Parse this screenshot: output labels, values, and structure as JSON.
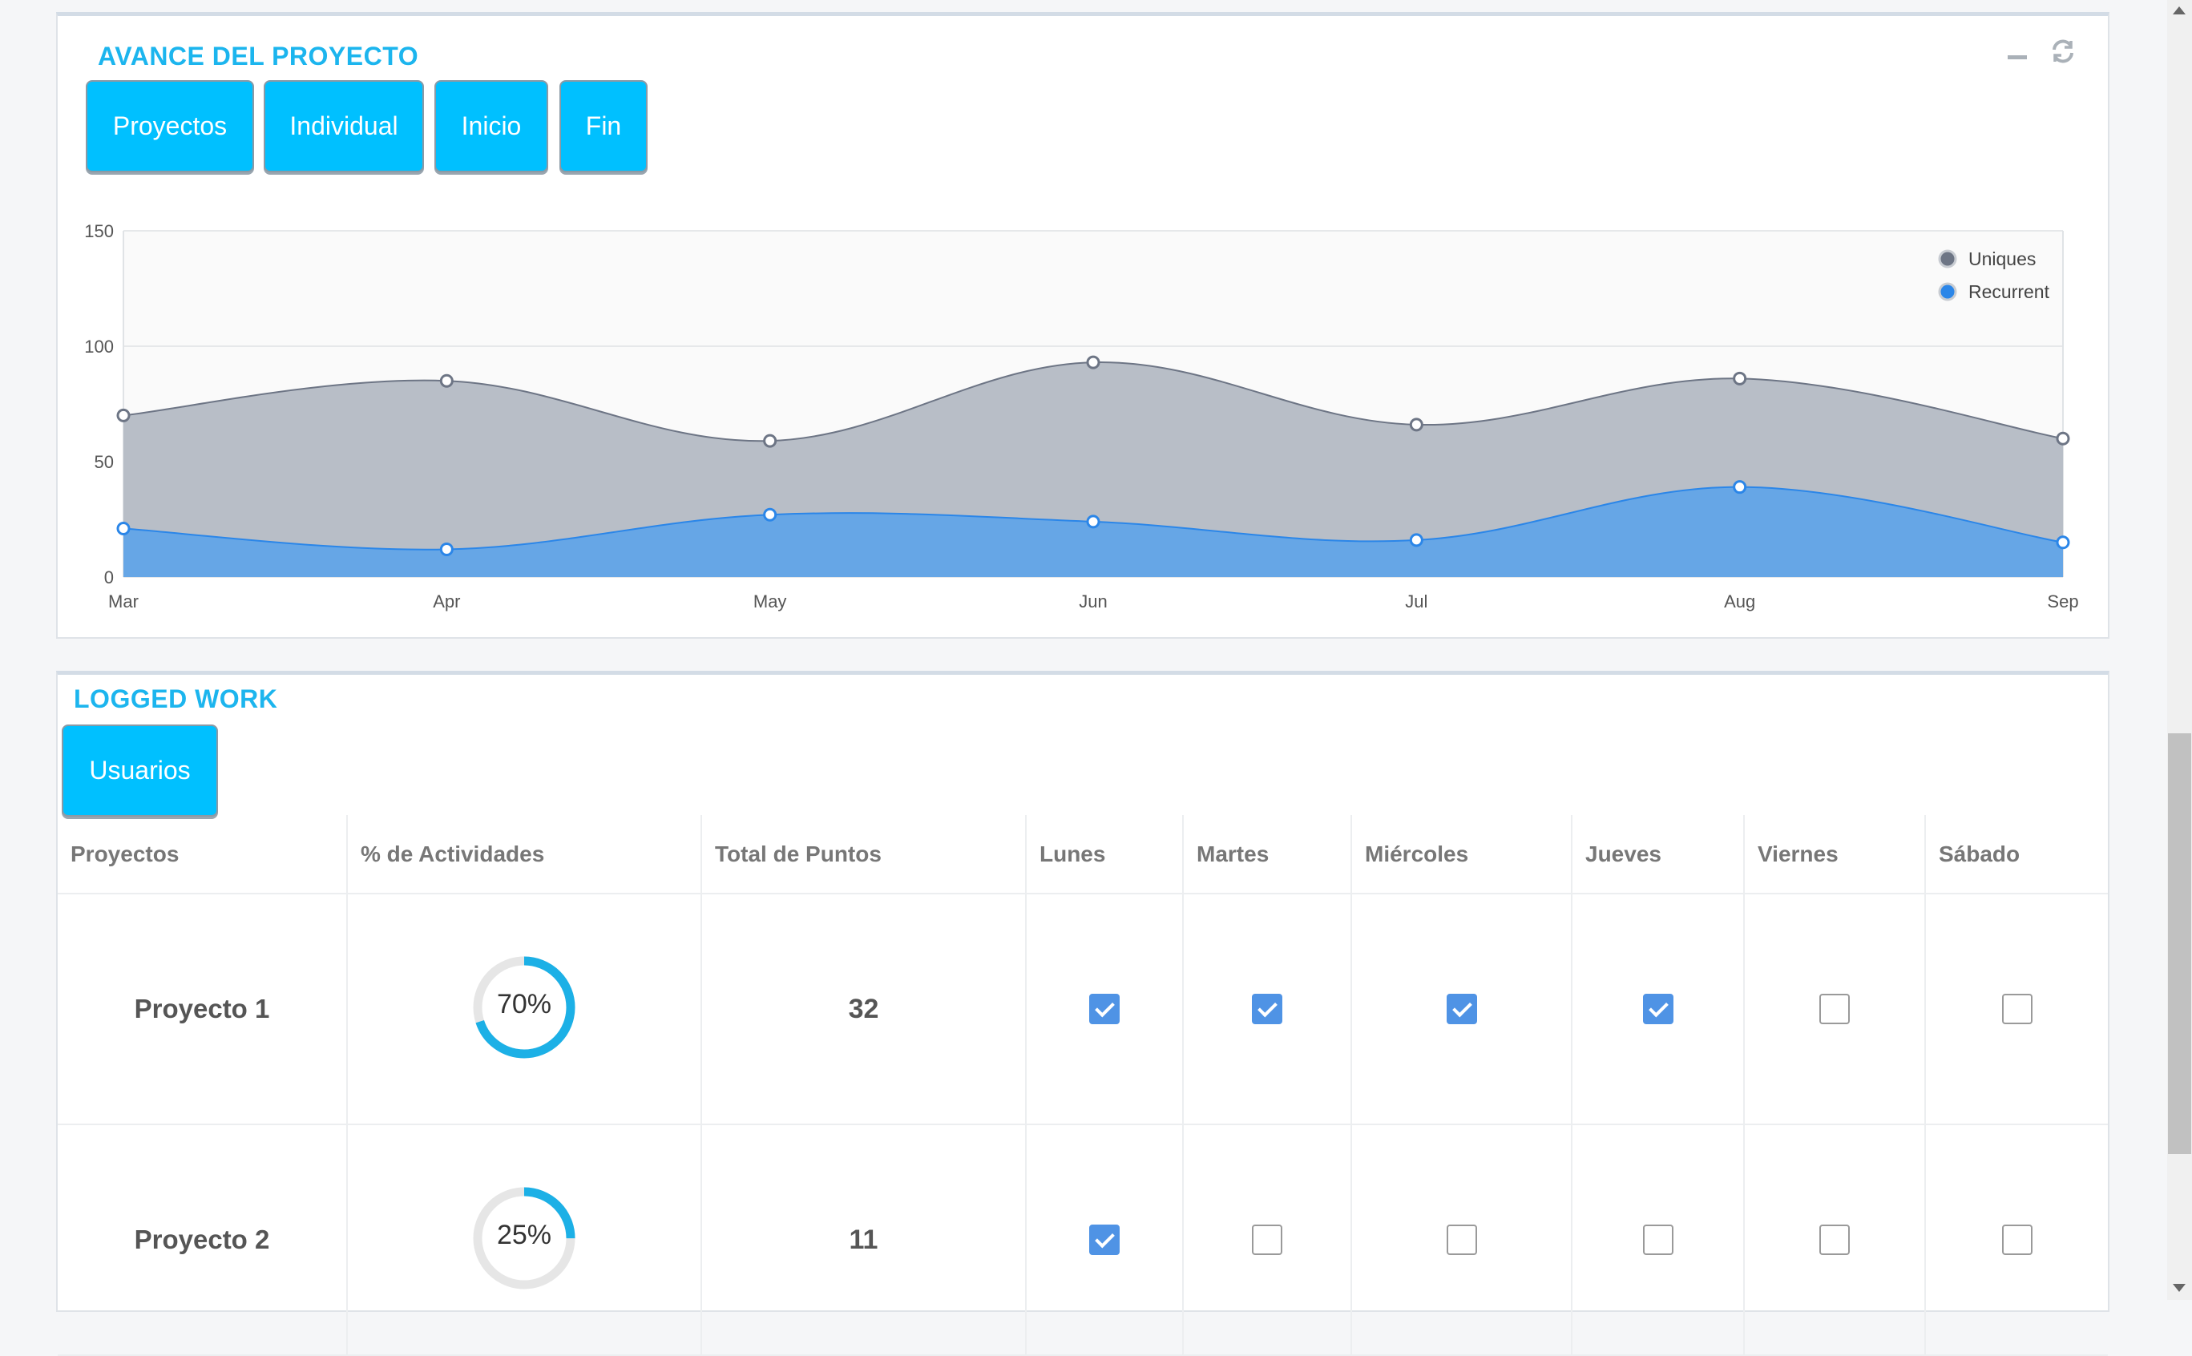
{
  "panel1": {
    "title": "AVANCE DEL PROYECTO",
    "buttons": [
      "Proyectos",
      "Individual",
      "Inicio",
      "Fin"
    ],
    "tools": [
      "minimize-icon",
      "refresh-icon"
    ]
  },
  "chart_data": {
    "type": "area",
    "categories": [
      "Mar",
      "Apr",
      "May",
      "Jun",
      "Jul",
      "Aug",
      "Sep"
    ],
    "series": [
      {
        "name": "Uniques",
        "values": [
          70,
          85,
          59,
          93,
          66,
          86,
          60
        ],
        "color": "#6d7585",
        "fill": "#b8bec7"
      },
      {
        "name": "Recurrent",
        "values": [
          21,
          12,
          27,
          24,
          16,
          39,
          15
        ],
        "color": "#2b86e8",
        "fill": "#66a6e6"
      }
    ],
    "yticks": [
      0,
      50,
      100,
      150
    ],
    "ylim": [
      0,
      150
    ],
    "grid": true,
    "legend": "top-right"
  },
  "panel2": {
    "title": "LOGGED WORK",
    "button": "Usuarios",
    "columns": [
      "Proyectos",
      "% de Actividades",
      "Total de Puntos",
      "Lunes",
      "Martes",
      "Miércoles",
      "Jueves",
      "Viernes",
      "Sábado"
    ],
    "rows": [
      {
        "name": "Proyecto 1",
        "percent": 70,
        "percent_label": "70%",
        "points": "32",
        "days": [
          true,
          true,
          true,
          true,
          false,
          false
        ]
      },
      {
        "name": "Proyecto 2",
        "percent": 25,
        "percent_label": "25%",
        "points": "11",
        "days": [
          true,
          false,
          false,
          false,
          false,
          false
        ]
      }
    ]
  },
  "colors": {
    "accent": "#00c0ff",
    "title": "#1cb5ee",
    "checkbox": "#4f93e5",
    "donut": "#1cb0e6",
    "donut_track": "#e6e6e6"
  }
}
